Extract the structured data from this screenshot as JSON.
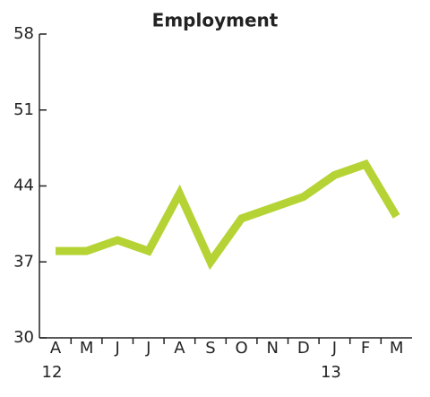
{
  "chart_data": {
    "type": "line",
    "title": "Employment",
    "categories": [
      "A",
      "M",
      "J",
      "J",
      "A",
      "S",
      "O",
      "N",
      "D",
      "J",
      "F",
      "M"
    ],
    "years": [
      "12",
      null,
      null,
      null,
      null,
      null,
      null,
      null,
      null,
      "13",
      null,
      null
    ],
    "series": [
      {
        "name": "Employment",
        "color": "#b5d334",
        "values": [
          38,
          38,
          39,
          38,
          43.3,
          37,
          41,
          42,
          43,
          45,
          46,
          41.2
        ]
      }
    ],
    "ylim": [
      30,
      58
    ],
    "yticks": [
      30,
      37,
      44,
      51,
      58
    ],
    "grid": false,
    "legend": false
  }
}
